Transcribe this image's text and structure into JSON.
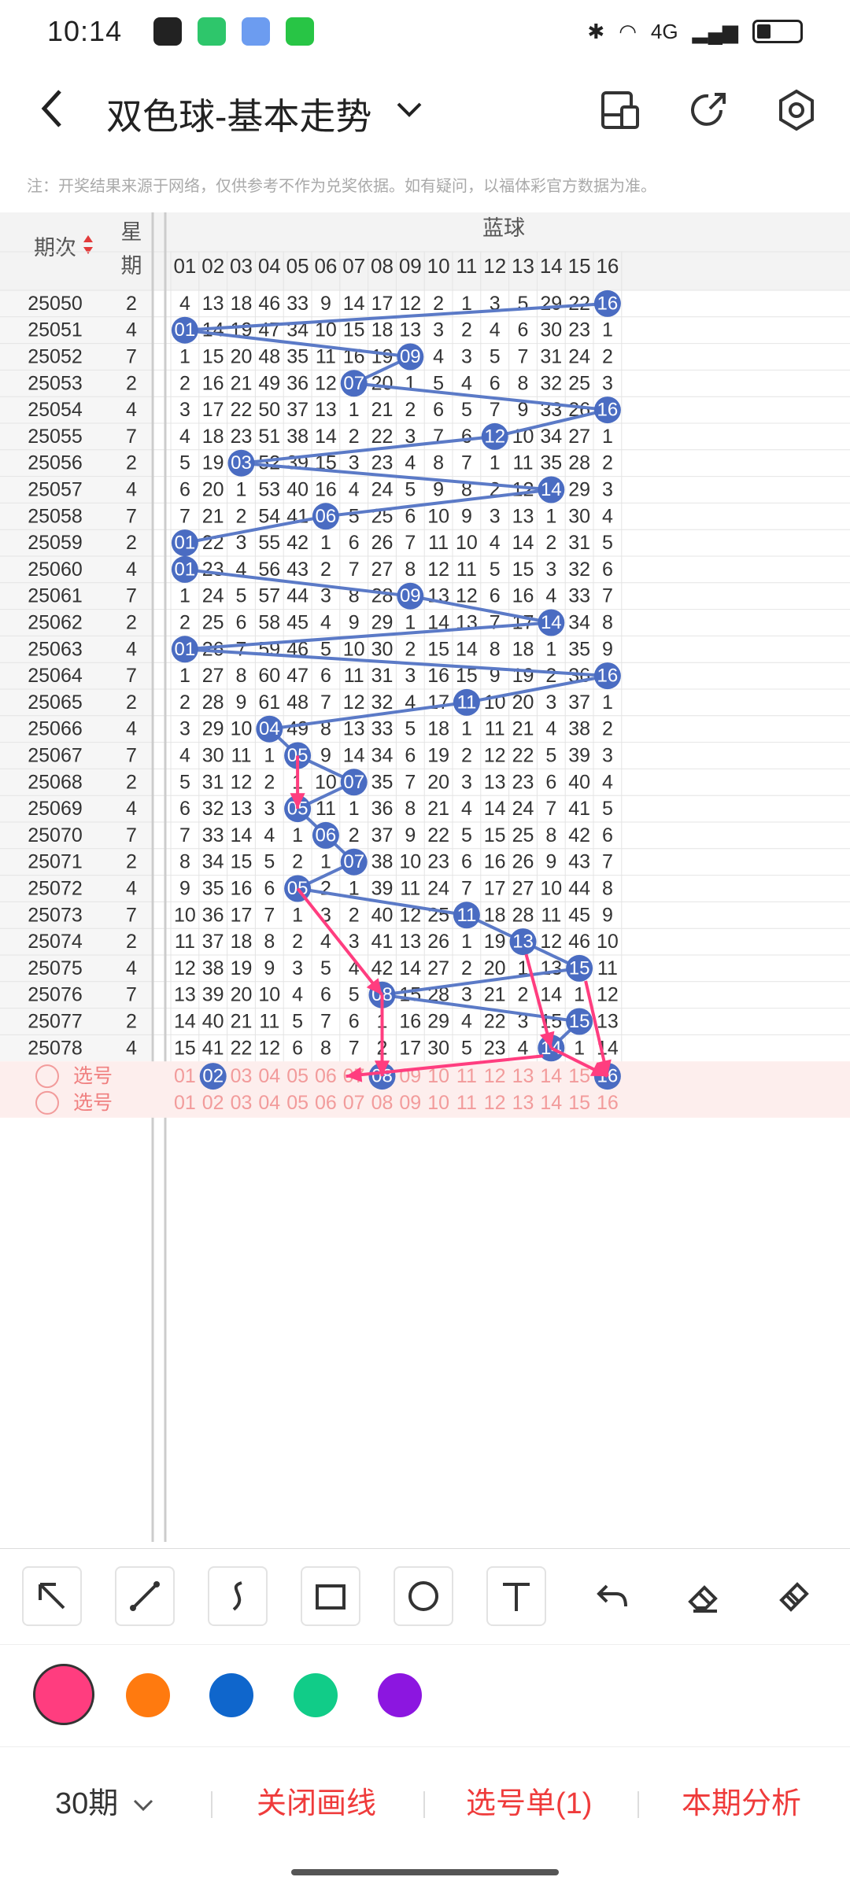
{
  "status": {
    "time": "10:14",
    "network": "4G"
  },
  "header": {
    "title": "双色球-基本走势"
  },
  "notice": "注：开奖结果来源于网络，仅供参考不作为兑奖依据。如有疑问，以福体彩官方数据为准。",
  "table": {
    "head_period": "期次",
    "head_week": "星期",
    "head_blue": "蓝球",
    "columns": [
      "01",
      "02",
      "03",
      "04",
      "05",
      "06",
      "07",
      "08",
      "09",
      "10",
      "11",
      "12",
      "13",
      "14",
      "15",
      "16"
    ],
    "rows": [
      {
        "p": "25050",
        "w": "2",
        "v": [
          "4",
          "13",
          "18",
          "46",
          "33",
          "9",
          "14",
          "17",
          "12",
          "2",
          "1",
          "3",
          "5",
          "29",
          "22",
          "16"
        ],
        "hit": 16
      },
      {
        "p": "25051",
        "w": "4",
        "v": [
          "01",
          "14",
          "19",
          "47",
          "34",
          "10",
          "15",
          "18",
          "13",
          "3",
          "2",
          "4",
          "6",
          "30",
          "23",
          "1"
        ],
        "hit": 1
      },
      {
        "p": "25052",
        "w": "7",
        "v": [
          "1",
          "15",
          "20",
          "48",
          "35",
          "11",
          "16",
          "19",
          "09",
          "4",
          "3",
          "5",
          "7",
          "31",
          "24",
          "2"
        ],
        "hit": 9
      },
      {
        "p": "25053",
        "w": "2",
        "v": [
          "2",
          "16",
          "21",
          "49",
          "36",
          "12",
          "07",
          "20",
          "1",
          "5",
          "4",
          "6",
          "8",
          "32",
          "25",
          "3"
        ],
        "hit": 7
      },
      {
        "p": "25054",
        "w": "4",
        "v": [
          "3",
          "17",
          "22",
          "50",
          "37",
          "13",
          "1",
          "21",
          "2",
          "6",
          "5",
          "7",
          "9",
          "33",
          "26",
          "16"
        ],
        "hit": 16
      },
      {
        "p": "25055",
        "w": "7",
        "v": [
          "4",
          "18",
          "23",
          "51",
          "38",
          "14",
          "2",
          "22",
          "3",
          "7",
          "6",
          "12",
          "10",
          "34",
          "27",
          "1"
        ],
        "hit": 12
      },
      {
        "p": "25056",
        "w": "2",
        "v": [
          "5",
          "19",
          "03",
          "52",
          "39",
          "15",
          "3",
          "23",
          "4",
          "8",
          "7",
          "1",
          "11",
          "35",
          "28",
          "2"
        ],
        "hit": 3
      },
      {
        "p": "25057",
        "w": "4",
        "v": [
          "6",
          "20",
          "1",
          "53",
          "40",
          "16",
          "4",
          "24",
          "5",
          "9",
          "8",
          "2",
          "12",
          "14",
          "29",
          "3"
        ],
        "hit": 14
      },
      {
        "p": "25058",
        "w": "7",
        "v": [
          "7",
          "21",
          "2",
          "54",
          "41",
          "06",
          "5",
          "25",
          "6",
          "10",
          "9",
          "3",
          "13",
          "1",
          "30",
          "4"
        ],
        "hit": 6
      },
      {
        "p": "25059",
        "w": "2",
        "v": [
          "01",
          "22",
          "3",
          "55",
          "42",
          "1",
          "6",
          "26",
          "7",
          "11",
          "10",
          "4",
          "14",
          "2",
          "31",
          "5"
        ],
        "hit": 1
      },
      {
        "p": "25060",
        "w": "4",
        "v": [
          "01",
          "23",
          "4",
          "56",
          "43",
          "2",
          "7",
          "27",
          "8",
          "12",
          "11",
          "5",
          "15",
          "3",
          "32",
          "6"
        ],
        "hit": 1
      },
      {
        "p": "25061",
        "w": "7",
        "v": [
          "1",
          "24",
          "5",
          "57",
          "44",
          "3",
          "8",
          "28",
          "09",
          "13",
          "12",
          "6",
          "16",
          "4",
          "33",
          "7"
        ],
        "hit": 9
      },
      {
        "p": "25062",
        "w": "2",
        "v": [
          "2",
          "25",
          "6",
          "58",
          "45",
          "4",
          "9",
          "29",
          "1",
          "14",
          "13",
          "7",
          "17",
          "14",
          "34",
          "8"
        ],
        "hit": 14
      },
      {
        "p": "25063",
        "w": "4",
        "v": [
          "01",
          "26",
          "7",
          "59",
          "46",
          "5",
          "10",
          "30",
          "2",
          "15",
          "14",
          "8",
          "18",
          "1",
          "35",
          "9"
        ],
        "hit": 1
      },
      {
        "p": "25064",
        "w": "7",
        "v": [
          "1",
          "27",
          "8",
          "60",
          "47",
          "6",
          "11",
          "31",
          "3",
          "16",
          "15",
          "9",
          "19",
          "2",
          "36",
          "16"
        ],
        "hit": 16
      },
      {
        "p": "25065",
        "w": "2",
        "v": [
          "2",
          "28",
          "9",
          "61",
          "48",
          "7",
          "12",
          "32",
          "4",
          "17",
          "11",
          "10",
          "20",
          "3",
          "37",
          "1"
        ],
        "hit": 11
      },
      {
        "p": "25066",
        "w": "4",
        "v": [
          "3",
          "29",
          "10",
          "04",
          "49",
          "8",
          "13",
          "33",
          "5",
          "18",
          "1",
          "11",
          "21",
          "4",
          "38",
          "2"
        ],
        "hit": 4
      },
      {
        "p": "25067",
        "w": "7",
        "v": [
          "4",
          "30",
          "11",
          "1",
          "05",
          "9",
          "14",
          "34",
          "6",
          "19",
          "2",
          "12",
          "22",
          "5",
          "39",
          "3"
        ],
        "hit": 5
      },
      {
        "p": "25068",
        "w": "2",
        "v": [
          "5",
          "31",
          "12",
          "2",
          "1",
          "10",
          "07",
          "35",
          "7",
          "20",
          "3",
          "13",
          "23",
          "6",
          "40",
          "4"
        ],
        "hit": 7
      },
      {
        "p": "25069",
        "w": "4",
        "v": [
          "6",
          "32",
          "13",
          "3",
          "05",
          "11",
          "1",
          "36",
          "8",
          "21",
          "4",
          "14",
          "24",
          "7",
          "41",
          "5"
        ],
        "hit": 5
      },
      {
        "p": "25070",
        "w": "7",
        "v": [
          "7",
          "33",
          "14",
          "4",
          "1",
          "06",
          "2",
          "37",
          "9",
          "22",
          "5",
          "15",
          "25",
          "8",
          "42",
          "6"
        ],
        "hit": 6
      },
      {
        "p": "25071",
        "w": "2",
        "v": [
          "8",
          "34",
          "15",
          "5",
          "2",
          "1",
          "07",
          "38",
          "10",
          "23",
          "6",
          "16",
          "26",
          "9",
          "43",
          "7"
        ],
        "hit": 7
      },
      {
        "p": "25072",
        "w": "4",
        "v": [
          "9",
          "35",
          "16",
          "6",
          "05",
          "2",
          "1",
          "39",
          "11",
          "24",
          "7",
          "17",
          "27",
          "10",
          "44",
          "8"
        ],
        "hit": 5
      },
      {
        "p": "25073",
        "w": "7",
        "v": [
          "10",
          "36",
          "17",
          "7",
          "1",
          "3",
          "2",
          "40",
          "12",
          "25",
          "11",
          "18",
          "28",
          "11",
          "45",
          "9"
        ],
        "hit": 11
      },
      {
        "p": "25074",
        "w": "2",
        "v": [
          "11",
          "37",
          "18",
          "8",
          "2",
          "4",
          "3",
          "41",
          "13",
          "26",
          "1",
          "19",
          "13",
          "12",
          "46",
          "10"
        ],
        "hit": 13
      },
      {
        "p": "25075",
        "w": "4",
        "v": [
          "12",
          "38",
          "19",
          "9",
          "3",
          "5",
          "4",
          "42",
          "14",
          "27",
          "2",
          "20",
          "1",
          "13",
          "15",
          "11"
        ],
        "hit": 15
      },
      {
        "p": "25076",
        "w": "7",
        "v": [
          "13",
          "39",
          "20",
          "10",
          "4",
          "6",
          "5",
          "08",
          "15",
          "28",
          "3",
          "21",
          "2",
          "14",
          "1",
          "12"
        ],
        "hit": 8
      },
      {
        "p": "25077",
        "w": "2",
        "v": [
          "14",
          "40",
          "21",
          "11",
          "5",
          "7",
          "6",
          "1",
          "16",
          "29",
          "4",
          "22",
          "3",
          "15",
          "15",
          "13"
        ],
        "hit": 15
      },
      {
        "p": "25078",
        "w": "4",
        "v": [
          "15",
          "41",
          "22",
          "12",
          "6",
          "8",
          "7",
          "2",
          "17",
          "30",
          "5",
          "23",
          "4",
          "14",
          "1",
          "14"
        ],
        "hit": 14
      }
    ],
    "select_label": "选号",
    "select_rows": [
      {
        "selected": [
          2,
          8,
          16
        ]
      },
      {
        "selected": []
      }
    ]
  },
  "palette": {
    "accent": "#ff3d7f",
    "blue": "#5b7ac7",
    "dark_blue": "#4a6cc2"
  },
  "tools": [
    "arrow-tool-icon",
    "line-tool-icon",
    "curve-tool-icon",
    "rect-tool-icon",
    "circle-tool-icon",
    "text-tool-icon",
    "undo-icon",
    "eraser-icon",
    "clear-icon"
  ],
  "colors": [
    "#ff3d7f",
    "#ff7a0f",
    "#0f66cc",
    "#11cc88",
    "#8c16e0"
  ],
  "footer": {
    "periods": "30期",
    "close_lines": "关闭画线",
    "pick_list": "选号单(1)",
    "analysis": "本期分析"
  }
}
